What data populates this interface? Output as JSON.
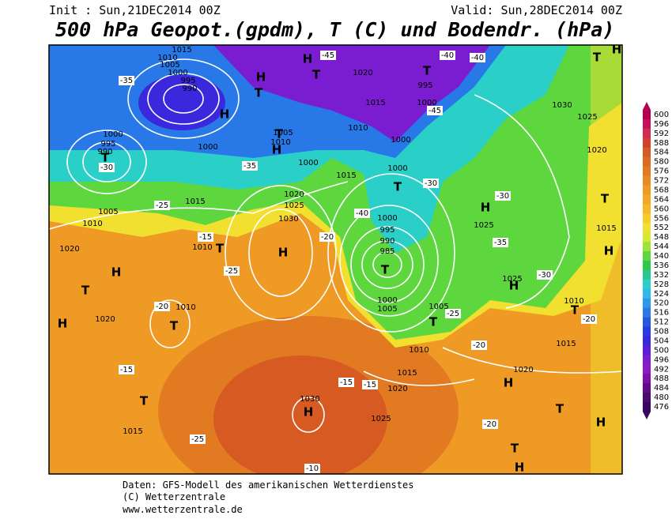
{
  "header": {
    "init": "Init : Sun,21DEC2014 00Z",
    "valid": "Valid: Sun,28DEC2014 00Z",
    "title": "500 hPa Geopot.(gpdm), T (C) und Bodendr. (hPa)"
  },
  "footer": {
    "source": "Daten: GFS-Modell des amerikanischen Wetterdienstes",
    "copyright": "(C) Wetterzentrale",
    "url": "www.wetterzentrale.de"
  },
  "colorbar": {
    "levels": [
      600,
      596,
      592,
      588,
      584,
      580,
      576,
      572,
      568,
      564,
      560,
      556,
      552,
      548,
      544,
      540,
      536,
      532,
      528,
      524,
      520,
      516,
      512,
      508,
      504,
      500,
      496,
      492,
      488,
      484,
      480,
      476
    ],
    "colors": [
      "#b4004e",
      "#c8105a",
      "#d22a52",
      "#d4402e",
      "#d65a22",
      "#dc6a22",
      "#e27a22",
      "#e88a24",
      "#ee9a24",
      "#f2a826",
      "#f4b828",
      "#f6cc2a",
      "#f2e030",
      "#d8e832",
      "#9ee23a",
      "#5ed63e",
      "#30c848",
      "#26c890",
      "#2ad0c8",
      "#30b8e8",
      "#2a98ec",
      "#2878e8",
      "#2458e0",
      "#2a3ce0",
      "#3a28dc",
      "#5a20d8",
      "#7a1cd0",
      "#9018c4",
      "#7a10a8",
      "#600c88",
      "#4a0a70",
      "#380860"
    ]
  },
  "map": {
    "labels": [
      "1015",
      "1010",
      "1005",
      "1000",
      "995",
      "990",
      "H",
      "T",
      "995",
      "1000",
      "990",
      "-30",
      "1005",
      "1010",
      "1015",
      "-25",
      "H",
      "1030",
      "1025",
      "1020",
      "1020",
      "H",
      "T",
      "H",
      "T",
      "1010",
      "1020",
      "-20",
      "-15",
      "T",
      "1015",
      "1030",
      "H",
      "-10",
      "T",
      "985",
      "990",
      "995",
      "1000",
      "1000",
      "1005",
      "1005",
      "T",
      "1010",
      "1015",
      "1020",
      "1025",
      "H",
      "1025",
      "H",
      "T",
      "H",
      "T",
      "H",
      "1020",
      "1015",
      "1010",
      "T",
      "H",
      "T",
      "1015",
      "1020",
      "1025",
      "1030",
      "T",
      "H",
      "1000",
      "995",
      "T",
      "-40",
      "-40",
      "-45",
      "-45",
      "1020",
      "1015",
      "1010",
      "T",
      "H",
      "T",
      "H",
      "T",
      "H",
      "1000",
      "-35",
      "1005",
      "1010",
      "1015",
      "1000",
      "T",
      "1000",
      "1000",
      "-30",
      "-35",
      "-30",
      "1025",
      "H",
      "-25",
      "-20",
      "-20",
      "-15",
      "-15",
      "-20",
      "-20",
      "-25",
      "T",
      "1010",
      "-15",
      "-25",
      "-40",
      "-30",
      "-35"
    ]
  }
}
